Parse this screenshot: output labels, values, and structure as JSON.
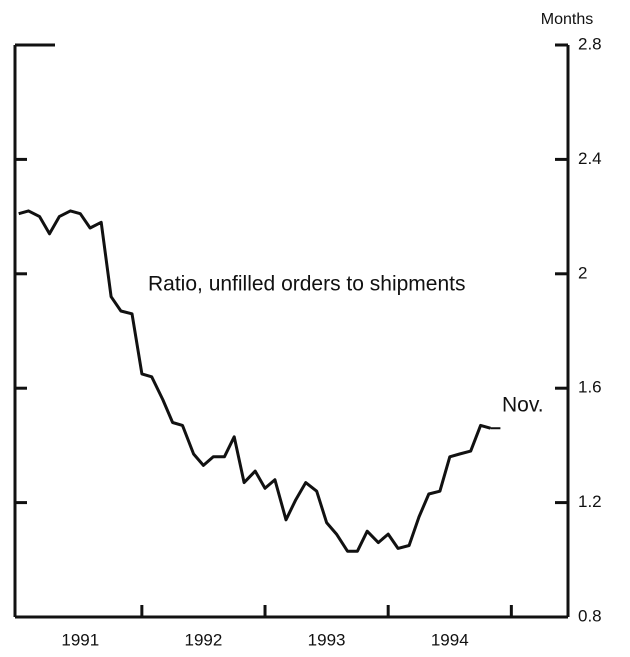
{
  "chart_data": {
    "type": "line",
    "y_axis_label": "Months",
    "annotations": [
      "Ratio, unfilled orders to shipments",
      "Nov."
    ],
    "x": [
      1991.0,
      1991.08,
      1991.17,
      1991.25,
      1991.33,
      1991.42,
      1991.5,
      1991.58,
      1991.67,
      1991.75,
      1991.83,
      1991.92,
      1992.0,
      1992.08,
      1992.17,
      1992.25,
      1992.33,
      1992.42,
      1992.5,
      1992.58,
      1992.67,
      1992.75,
      1992.83,
      1992.92,
      1993.0,
      1993.08,
      1993.17,
      1993.25,
      1993.33,
      1993.42,
      1993.5,
      1993.58,
      1993.67,
      1993.75,
      1993.83,
      1993.92,
      1994.0,
      1994.08,
      1994.17,
      1994.25,
      1994.33,
      1994.42,
      1994.5,
      1994.58,
      1994.67,
      1994.75,
      1994.83
    ],
    "series": [
      {
        "name": "Ratio, unfilled orders to shipments",
        "color": "#111111",
        "values": [
          2.21,
          2.22,
          2.2,
          2.14,
          2.2,
          2.22,
          2.21,
          2.16,
          2.18,
          1.92,
          1.87,
          1.86,
          1.65,
          1.64,
          1.56,
          1.48,
          1.47,
          1.37,
          1.33,
          1.36,
          1.36,
          1.43,
          1.27,
          1.31,
          1.25,
          1.28,
          1.14,
          1.21,
          1.27,
          1.24,
          1.13,
          1.09,
          1.03,
          1.03,
          1.1,
          1.06,
          1.09,
          1.04,
          1.05,
          1.15,
          1.23,
          1.24,
          1.36,
          1.37,
          1.38,
          1.47,
          1.46
        ]
      }
    ],
    "year_labels": [
      "1991",
      "1992",
      "1993",
      "1994"
    ],
    "xlim": [
      1990.97,
      1995.46
    ],
    "xticks": [
      1992,
      1993,
      1994,
      1995
    ],
    "ylim": [
      0.8,
      2.8
    ],
    "yticks": [
      0.8,
      1.2,
      1.6,
      2,
      2.4,
      2.8
    ]
  }
}
